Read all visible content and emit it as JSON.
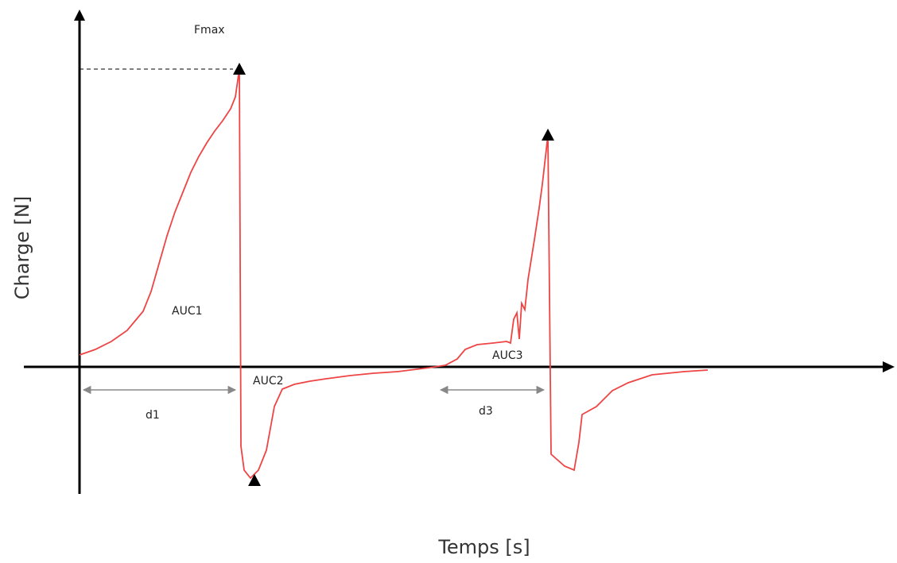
{
  "chart_data": {
    "type": "line",
    "xlabel": "Temps [s]",
    "ylabel": "Charge [N]",
    "grid": false,
    "legend": "none",
    "xlim": [
      0,
      1000
    ],
    "ylim": [
      -160,
      380
    ],
    "colors": {
      "curve": "#ee4444",
      "axis": "#000000",
      "dim": "#888888"
    },
    "series": [
      {
        "values": [
          [
            0,
            15
          ],
          [
            20,
            22
          ],
          [
            40,
            32
          ],
          [
            60,
            46
          ],
          [
            80,
            70
          ],
          [
            90,
            95
          ],
          [
            100,
            130
          ],
          [
            110,
            165
          ],
          [
            120,
            195
          ],
          [
            130,
            220
          ],
          [
            140,
            245
          ],
          [
            150,
            265
          ],
          [
            160,
            282
          ],
          [
            170,
            297
          ],
          [
            180,
            310
          ],
          [
            190,
            325
          ],
          [
            196,
            340
          ],
          [
            201,
            375
          ],
          [
            203,
            -100
          ],
          [
            207,
            -130
          ],
          [
            215,
            -140
          ],
          [
            225,
            -130
          ],
          [
            235,
            -105
          ],
          [
            245,
            -50
          ],
          [
            255,
            -28
          ],
          [
            270,
            -22
          ],
          [
            290,
            -18
          ],
          [
            310,
            -15
          ],
          [
            340,
            -11
          ],
          [
            370,
            -8
          ],
          [
            400,
            -6
          ],
          [
            440,
            -1
          ],
          [
            460,
            2
          ],
          [
            475,
            10
          ],
          [
            485,
            22
          ],
          [
            500,
            28
          ],
          [
            520,
            30
          ],
          [
            537,
            32
          ],
          [
            542,
            30
          ],
          [
            546,
            60
          ],
          [
            550,
            68
          ],
          [
            553,
            35
          ],
          [
            556,
            80
          ],
          [
            560,
            72
          ],
          [
            564,
            110
          ],
          [
            572,
            160
          ],
          [
            578,
            200
          ],
          [
            582,
            230
          ],
          [
            586,
            265
          ],
          [
            589,
            292
          ],
          [
            593,
            -110
          ],
          [
            610,
            -125
          ],
          [
            622,
            -130
          ],
          [
            628,
            -95
          ],
          [
            632,
            -60
          ],
          [
            650,
            -50
          ],
          [
            660,
            -40
          ],
          [
            670,
            -30
          ],
          [
            690,
            -20
          ],
          [
            720,
            -10
          ],
          [
            760,
            -6
          ],
          [
            790,
            -4
          ]
        ]
      }
    ],
    "markers": [
      {
        "x": 201,
        "y": 375
      },
      {
        "x": 220,
        "y": -143
      },
      {
        "x": 589,
        "y": 292
      }
    ],
    "annotations": {
      "fmax": "Fmax",
      "auc1": "AUC1",
      "auc2": "AUC2",
      "auc3": "AUC3",
      "d1": "d1",
      "d3": "d3"
    },
    "intervals": [
      {
        "label": "d1",
        "x_from": 0,
        "x_to": 201
      },
      {
        "label": "d3",
        "x_from": 449,
        "x_to": 589
      }
    ]
  }
}
